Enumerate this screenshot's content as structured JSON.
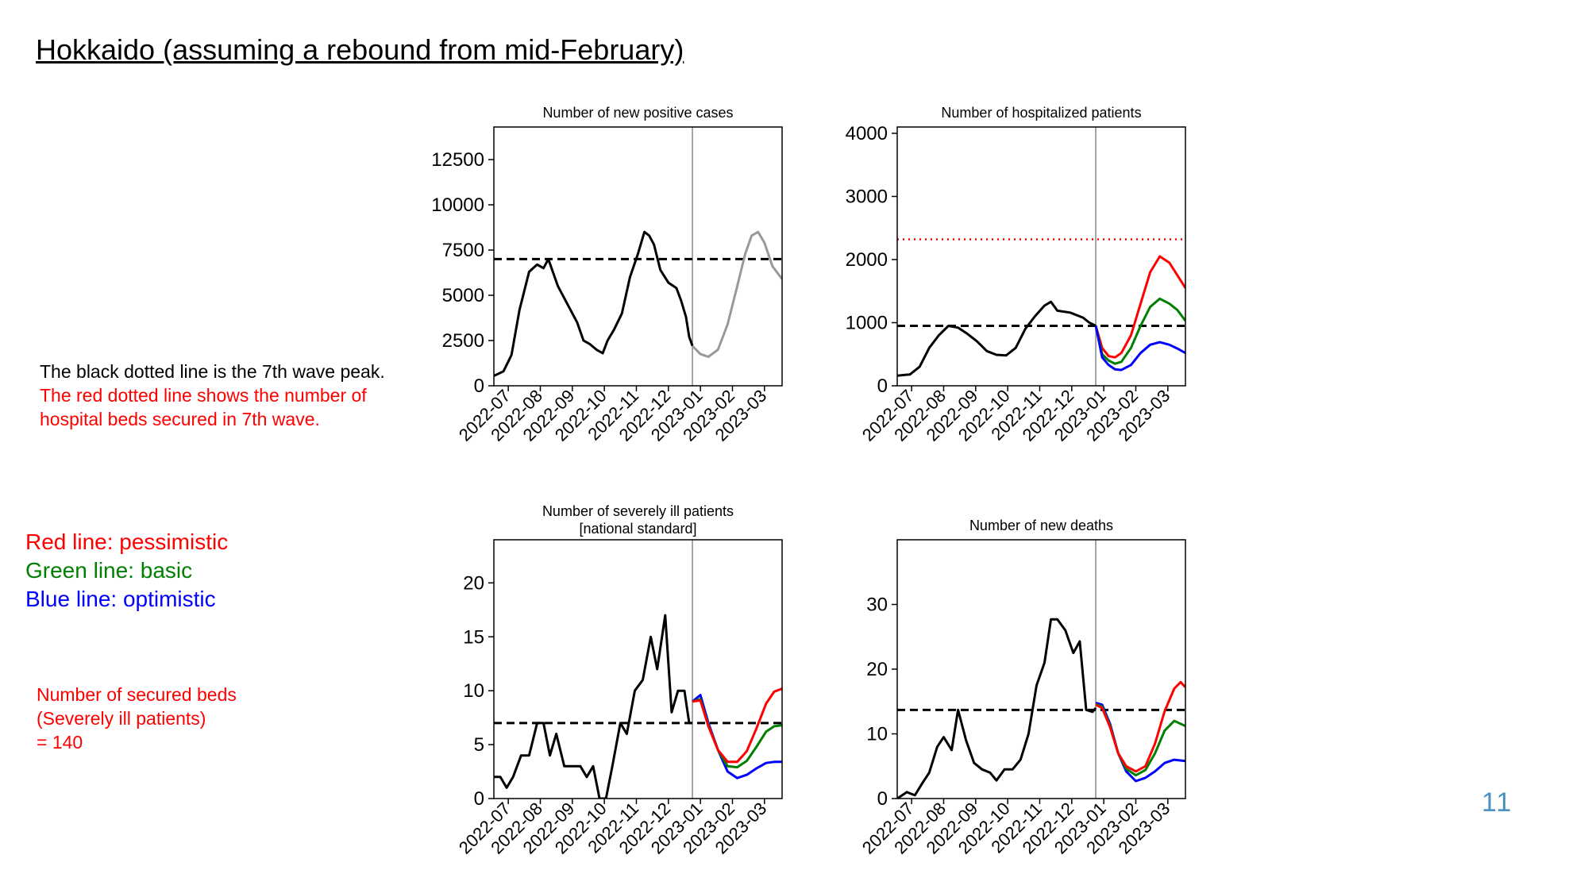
{
  "title": "Hokkaido (assuming a rebound from mid-February)",
  "notes": {
    "black_line": "The black dotted line is the 7th wave peak.",
    "red_line_1": "The red dotted line shows the number of",
    "red_line_2": "hospital beds secured in 7th wave."
  },
  "legend": {
    "red": "Red line: pessimistic",
    "green": "Green line: basic",
    "blue": "Blue line: optimistic"
  },
  "secured_beds": {
    "line1": "Number of secured beds",
    "line2": "(Severely ill patients)",
    "line3": "= 140"
  },
  "page_number": "11",
  "colors": {
    "black": "#000000",
    "red": "#ff0000",
    "green": "#008000",
    "blue": "#0000ff",
    "gray": "#999999",
    "vline": "#888888"
  },
  "chart_data": [
    {
      "type": "line",
      "title": "Number of new positive cases",
      "x_ticks": [
        "2022-07",
        "2022-08",
        "2022-09",
        "2022-10",
        "2022-11",
        "2022-12",
        "2023-01",
        "2023-02",
        "2023-03"
      ],
      "xlim": [
        0,
        9
      ],
      "ylim": [
        0,
        14300
      ],
      "y_ticks": [
        0,
        2500,
        5000,
        7500,
        10000,
        12500
      ],
      "y_tick_labels": [
        "0",
        "2500",
        "5000",
        "7500",
        "10000",
        "12500"
      ],
      "reference_lines": [
        {
          "y": 7000,
          "style": "dashed",
          "color": "#000000"
        }
      ],
      "vline_x": 6.2,
      "series": [
        {
          "color": "#000000",
          "points": [
            [
              0,
              550
            ],
            [
              0.3,
              800
            ],
            [
              0.55,
              1700
            ],
            [
              0.8,
              4200
            ],
            [
              1.1,
              6300
            ],
            [
              1.35,
              6700
            ],
            [
              1.55,
              6500
            ],
            [
              1.7,
              7000
            ],
            [
              2.0,
              5500
            ],
            [
              2.3,
              4500
            ],
            [
              2.6,
              3500
            ],
            [
              2.8,
              2500
            ],
            [
              3.0,
              2300
            ],
            [
              3.2,
              2000
            ],
            [
              3.4,
              1800
            ],
            [
              3.55,
              2500
            ],
            [
              3.75,
              3100
            ],
            [
              4.0,
              4000
            ],
            [
              4.25,
              6000
            ],
            [
              4.5,
              7300
            ],
            [
              4.7,
              8500
            ],
            [
              4.85,
              8300
            ],
            [
              5.0,
              7800
            ],
            [
              5.2,
              6400
            ],
            [
              5.45,
              5700
            ],
            [
              5.7,
              5400
            ],
            [
              5.85,
              4700
            ],
            [
              6.0,
              3800
            ],
            [
              6.1,
              2700
            ],
            [
              6.2,
              2200
            ]
          ]
        },
        {
          "color": "#999999",
          "points": [
            [
              6.2,
              2200
            ],
            [
              6.45,
              1750
            ],
            [
              6.7,
              1600
            ],
            [
              7.0,
              2000
            ],
            [
              7.3,
              3400
            ],
            [
              7.6,
              5500
            ],
            [
              7.85,
              7300
            ],
            [
              8.05,
              8300
            ],
            [
              8.25,
              8500
            ],
            [
              8.45,
              7900
            ],
            [
              8.7,
              6600
            ],
            [
              9.0,
              5900
            ]
          ]
        }
      ]
    },
    {
      "type": "line",
      "title": "Number of hospitalized patients",
      "x_ticks": [
        "2022-07",
        "2022-08",
        "2022-09",
        "2022-10",
        "2022-11",
        "2022-12",
        "2023-01",
        "2023-02",
        "2023-03"
      ],
      "xlim": [
        0,
        9
      ],
      "ylim": [
        0,
        4100
      ],
      "y_ticks": [
        0,
        1000,
        2000,
        3000,
        4000
      ],
      "y_tick_labels": [
        "0",
        "1000",
        "2000",
        "3000",
        "4000"
      ],
      "reference_lines": [
        {
          "y": 950,
          "style": "dashed",
          "color": "#000000"
        },
        {
          "y": 2320,
          "style": "dotted",
          "color": "#ff0000"
        }
      ],
      "vline_x": 6.2,
      "series": [
        {
          "color": "#000000",
          "points": [
            [
              0,
              160
            ],
            [
              0.4,
              180
            ],
            [
              0.7,
              300
            ],
            [
              1.0,
              600
            ],
            [
              1.3,
              800
            ],
            [
              1.6,
              950
            ],
            [
              1.9,
              920
            ],
            [
              2.2,
              820
            ],
            [
              2.5,
              700
            ],
            [
              2.8,
              550
            ],
            [
              3.1,
              490
            ],
            [
              3.4,
              480
            ],
            [
              3.7,
              600
            ],
            [
              4.0,
              900
            ],
            [
              4.3,
              1100
            ],
            [
              4.6,
              1270
            ],
            [
              4.8,
              1330
            ],
            [
              5.0,
              1190
            ],
            [
              5.4,
              1160
            ],
            [
              5.8,
              1080
            ],
            [
              6.0,
              1000
            ],
            [
              6.2,
              950
            ]
          ]
        },
        {
          "color": "#ff0000",
          "points": [
            [
              6.2,
              950
            ],
            [
              6.4,
              600
            ],
            [
              6.6,
              470
            ],
            [
              6.8,
              450
            ],
            [
              7.0,
              520
            ],
            [
              7.3,
              800
            ],
            [
              7.6,
              1300
            ],
            [
              7.9,
              1800
            ],
            [
              8.2,
              2050
            ],
            [
              8.5,
              1950
            ],
            [
              8.75,
              1750
            ],
            [
              9.0,
              1550
            ]
          ]
        },
        {
          "color": "#008000",
          "points": [
            [
              6.2,
              950
            ],
            [
              6.4,
              500
            ],
            [
              6.6,
              400
            ],
            [
              6.8,
              350
            ],
            [
              7.0,
              380
            ],
            [
              7.3,
              600
            ],
            [
              7.6,
              950
            ],
            [
              7.9,
              1250
            ],
            [
              8.2,
              1380
            ],
            [
              8.5,
              1300
            ],
            [
              8.75,
              1200
            ],
            [
              9.0,
              1030
            ]
          ]
        },
        {
          "color": "#0000ff",
          "points": [
            [
              6.2,
              950
            ],
            [
              6.4,
              450
            ],
            [
              6.6,
              330
            ],
            [
              6.8,
              260
            ],
            [
              7.0,
              250
            ],
            [
              7.3,
              330
            ],
            [
              7.6,
              520
            ],
            [
              7.9,
              650
            ],
            [
              8.2,
              690
            ],
            [
              8.5,
              650
            ],
            [
              8.75,
              590
            ],
            [
              9.0,
              520
            ]
          ]
        }
      ]
    },
    {
      "type": "line",
      "title": "Number of severely ill patients",
      "subtitle": "[national standard]",
      "x_ticks": [
        "2022-07",
        "2022-08",
        "2022-09",
        "2022-10",
        "2022-11",
        "2022-12",
        "2023-01",
        "2023-02",
        "2023-03"
      ],
      "xlim": [
        0,
        9
      ],
      "ylim": [
        0,
        24
      ],
      "y_ticks": [
        0,
        5,
        10,
        15,
        20
      ],
      "y_tick_labels": [
        "0",
        "5",
        "10",
        "15",
        "20"
      ],
      "reference_lines": [
        {
          "y": 7,
          "style": "dashed",
          "color": "#000000"
        }
      ],
      "vline_x": 6.2,
      "series": [
        {
          "color": "#000000",
          "points": [
            [
              0,
              2
            ],
            [
              0.2,
              2
            ],
            [
              0.4,
              1
            ],
            [
              0.6,
              2
            ],
            [
              0.85,
              4
            ],
            [
              1.1,
              4
            ],
            [
              1.35,
              7
            ],
            [
              1.55,
              7
            ],
            [
              1.75,
              4
            ],
            [
              1.95,
              6
            ],
            [
              2.2,
              3
            ],
            [
              2.45,
              3
            ],
            [
              2.7,
              3
            ],
            [
              2.9,
              2
            ],
            [
              3.1,
              3
            ],
            [
              3.3,
              0
            ],
            [
              3.5,
              0
            ],
            [
              3.7,
              3
            ],
            [
              3.95,
              7
            ],
            [
              4.15,
              6
            ],
            [
              4.4,
              10
            ],
            [
              4.65,
              11
            ],
            [
              4.9,
              15
            ],
            [
              5.1,
              12
            ],
            [
              5.35,
              17
            ],
            [
              5.55,
              8
            ],
            [
              5.75,
              10
            ],
            [
              5.95,
              10
            ],
            [
              6.1,
              7
            ],
            [
              6.2,
              7
            ]
          ]
        },
        {
          "color": "#0000ff",
          "points": [
            [
              6.2,
              9
            ],
            [
              6.45,
              9.6
            ],
            [
              6.7,
              7
            ],
            [
              7.0,
              4.5
            ],
            [
              7.3,
              2.5
            ],
            [
              7.6,
              1.9
            ],
            [
              7.9,
              2.2
            ],
            [
              8.2,
              2.8
            ],
            [
              8.5,
              3.3
            ],
            [
              8.75,
              3.4
            ],
            [
              9.0,
              3.4
            ]
          ]
        },
        {
          "color": "#008000",
          "points": [
            [
              6.2,
              9
            ],
            [
              6.45,
              9.2
            ],
            [
              6.7,
              6.8
            ],
            [
              7.0,
              4.5
            ],
            [
              7.3,
              3
            ],
            [
              7.6,
              2.9
            ],
            [
              7.9,
              3.5
            ],
            [
              8.2,
              4.8
            ],
            [
              8.5,
              6.2
            ],
            [
              8.75,
              6.7
            ],
            [
              9.0,
              6.8
            ]
          ]
        },
        {
          "color": "#ff0000",
          "points": [
            [
              6.2,
              9
            ],
            [
              6.45,
              9.1
            ],
            [
              6.7,
              6.7
            ],
            [
              7.0,
              4.5
            ],
            [
              7.3,
              3.4
            ],
            [
              7.6,
              3.4
            ],
            [
              7.9,
              4.4
            ],
            [
              8.2,
              6.5
            ],
            [
              8.5,
              8.8
            ],
            [
              8.75,
              9.9
            ],
            [
              9.0,
              10.2
            ]
          ]
        }
      ]
    },
    {
      "type": "line",
      "title": "Number of new deaths",
      "x_ticks": [
        "2022-07",
        "2022-08",
        "2022-09",
        "2022-10",
        "2022-11",
        "2022-12",
        "2023-01",
        "2023-02",
        "2023-03"
      ],
      "xlim": [
        0,
        9
      ],
      "ylim": [
        0,
        40
      ],
      "y_ticks": [
        0,
        10,
        20,
        30
      ],
      "y_tick_labels": [
        "0",
        "10",
        "20",
        "30"
      ],
      "reference_lines": [
        {
          "y": 13.7,
          "style": "dashed",
          "color": "#000000"
        }
      ],
      "vline_x": 6.2,
      "series": [
        {
          "color": "#000000",
          "points": [
            [
              0,
              0
            ],
            [
              0.3,
              1
            ],
            [
              0.55,
              0.5
            ],
            [
              0.8,
              2.5
            ],
            [
              1.0,
              4
            ],
            [
              1.25,
              8
            ],
            [
              1.45,
              9.5
            ],
            [
              1.7,
              7.5
            ],
            [
              1.9,
              13.7
            ],
            [
              2.15,
              9
            ],
            [
              2.4,
              5.5
            ],
            [
              2.65,
              4.5
            ],
            [
              2.9,
              4
            ],
            [
              3.1,
              2.8
            ],
            [
              3.35,
              4.5
            ],
            [
              3.6,
              4.5
            ],
            [
              3.85,
              6
            ],
            [
              4.1,
              10
            ],
            [
              4.35,
              17.5
            ],
            [
              4.6,
              21
            ],
            [
              4.8,
              27.7
            ],
            [
              5.0,
              27.7
            ],
            [
              5.25,
              26
            ],
            [
              5.5,
              22.5
            ],
            [
              5.7,
              24.3
            ],
            [
              5.9,
              13.7
            ],
            [
              6.1,
              13.4
            ],
            [
              6.2,
              14
            ]
          ]
        },
        {
          "color": "#0000ff",
          "points": [
            [
              6.2,
              14.8
            ],
            [
              6.4,
              14.5
            ],
            [
              6.65,
              11.5
            ],
            [
              6.9,
              7
            ],
            [
              7.15,
              4.2
            ],
            [
              7.45,
              2.7
            ],
            [
              7.75,
              3.2
            ],
            [
              8.05,
              4.2
            ],
            [
              8.35,
              5.5
            ],
            [
              8.65,
              6
            ],
            [
              9.0,
              5.8
            ]
          ]
        },
        {
          "color": "#008000",
          "points": [
            [
              6.2,
              14.6
            ],
            [
              6.4,
              14.2
            ],
            [
              6.65,
              11.2
            ],
            [
              6.9,
              7
            ],
            [
              7.15,
              4.6
            ],
            [
              7.45,
              3.6
            ],
            [
              7.75,
              4.4
            ],
            [
              8.05,
              7
            ],
            [
              8.35,
              10.5
            ],
            [
              8.65,
              12
            ],
            [
              9.0,
              11.2
            ]
          ]
        },
        {
          "color": "#ff0000",
          "points": [
            [
              6.2,
              14.5
            ],
            [
              6.4,
              14
            ],
            [
              6.65,
              11
            ],
            [
              6.9,
              7
            ],
            [
              7.15,
              5
            ],
            [
              7.45,
              4.2
            ],
            [
              7.75,
              5
            ],
            [
              8.05,
              8.5
            ],
            [
              8.35,
              13.5
            ],
            [
              8.65,
              17
            ],
            [
              8.85,
              18
            ],
            [
              9.0,
              17.2
            ]
          ]
        }
      ]
    }
  ]
}
